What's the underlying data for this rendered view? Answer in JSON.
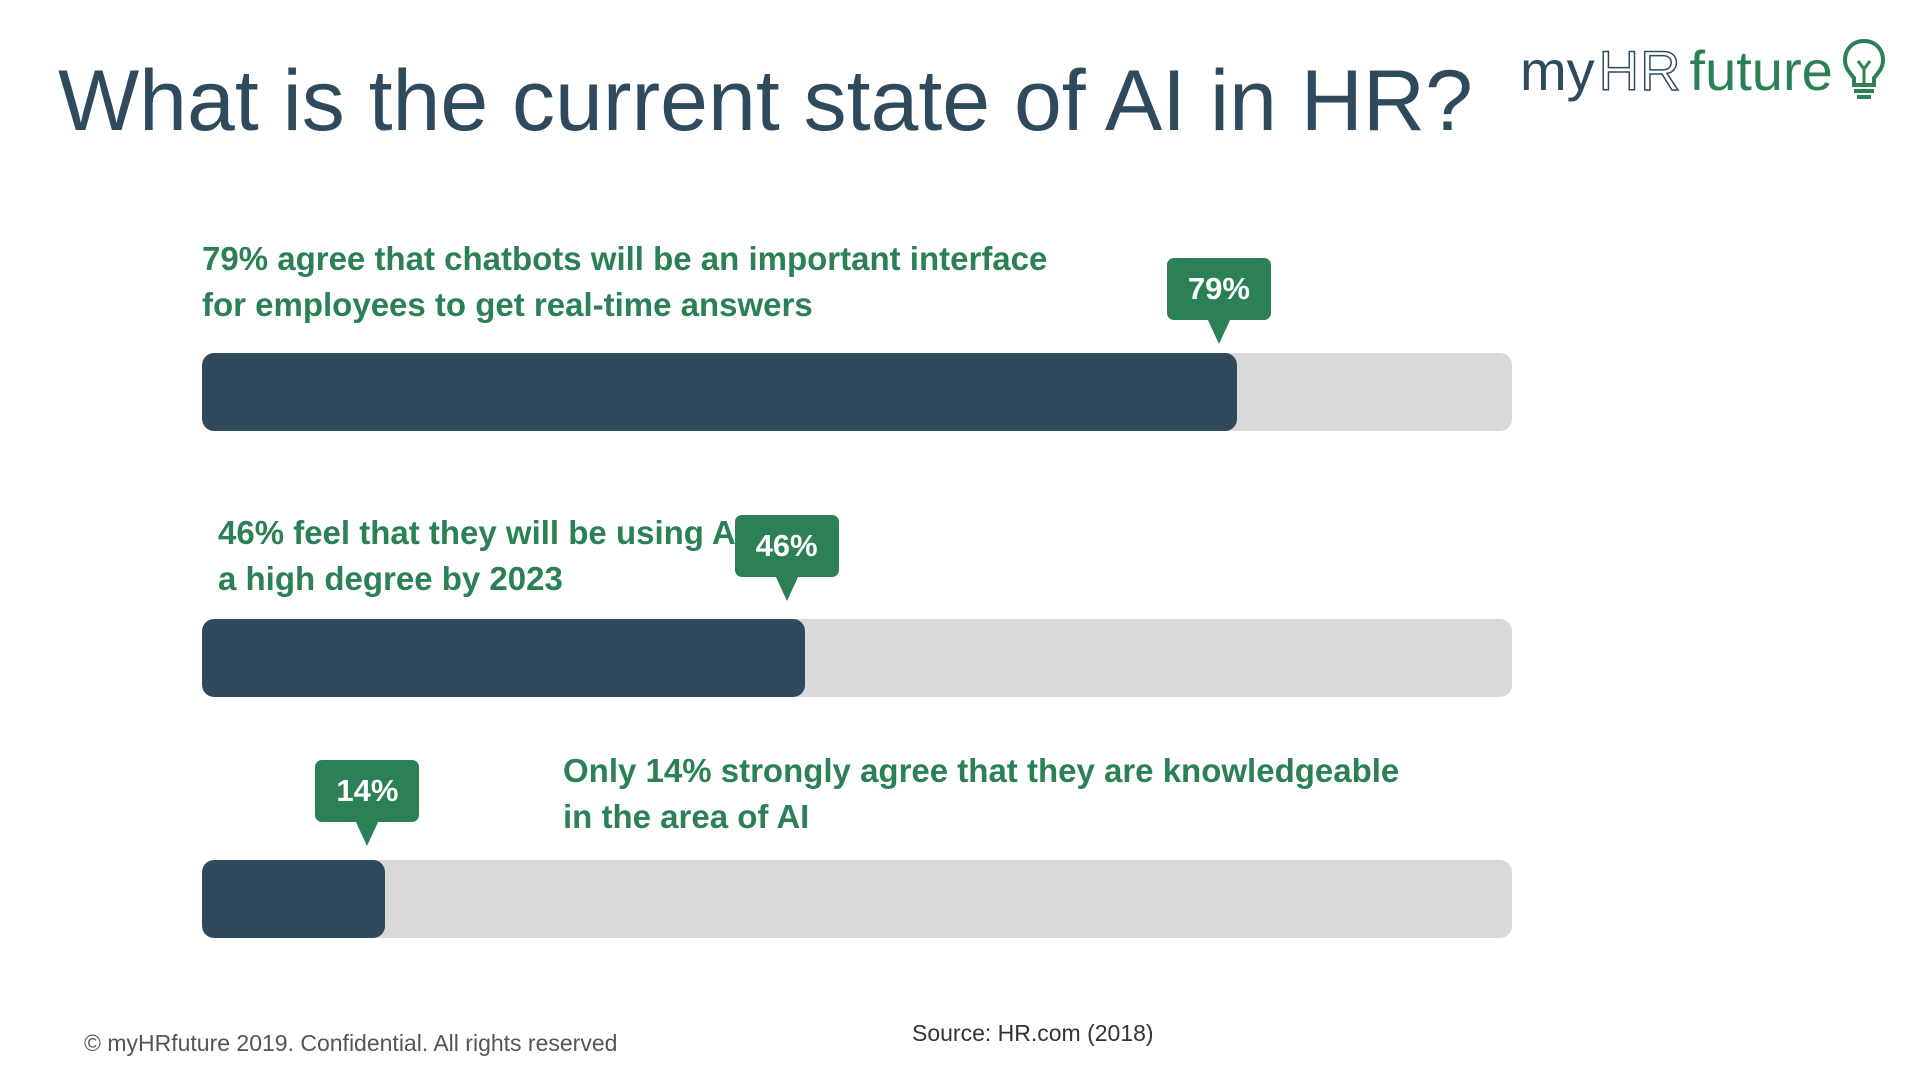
{
  "title": "What is the current state of AI in HR?",
  "logo": {
    "part1": "my",
    "part2": "HR",
    "part3": "future"
  },
  "colors": {
    "bar_fill": "#2e4a5c",
    "bar_track": "#d9d9d9",
    "accent_green": "#2b8055",
    "title": "#2e4a5c"
  },
  "chart_data": {
    "type": "bar",
    "orientation": "horizontal",
    "xlim": [
      0,
      100
    ],
    "categories": [
      "79% agree that chatbots will be an important interface for employees to get real-time answers",
      "46% feel that they will be using AI at a high degree by 2023",
      "Only 14% strongly agree that they are knowledgeable in the area of AI"
    ],
    "values": [
      79,
      46,
      14
    ],
    "data_labels": [
      "79%",
      "46%",
      "14%"
    ]
  },
  "stats": [
    {
      "line1": "79% agree that chatbots will be an important interface",
      "line2": "for employees to get real-time answers",
      "label": "79%"
    },
    {
      "line1": "46% feel that they will be using AI at",
      "line2": "a high degree by 2023",
      "label": "46%"
    },
    {
      "line1": "Only 14% strongly agree that they are knowledgeable",
      "line2": "in the area of AI",
      "label": "14%"
    }
  ],
  "footer": "© myHRfuture 2019. Confidential. All rights reserved",
  "source": "Source: HR.com (2018)"
}
